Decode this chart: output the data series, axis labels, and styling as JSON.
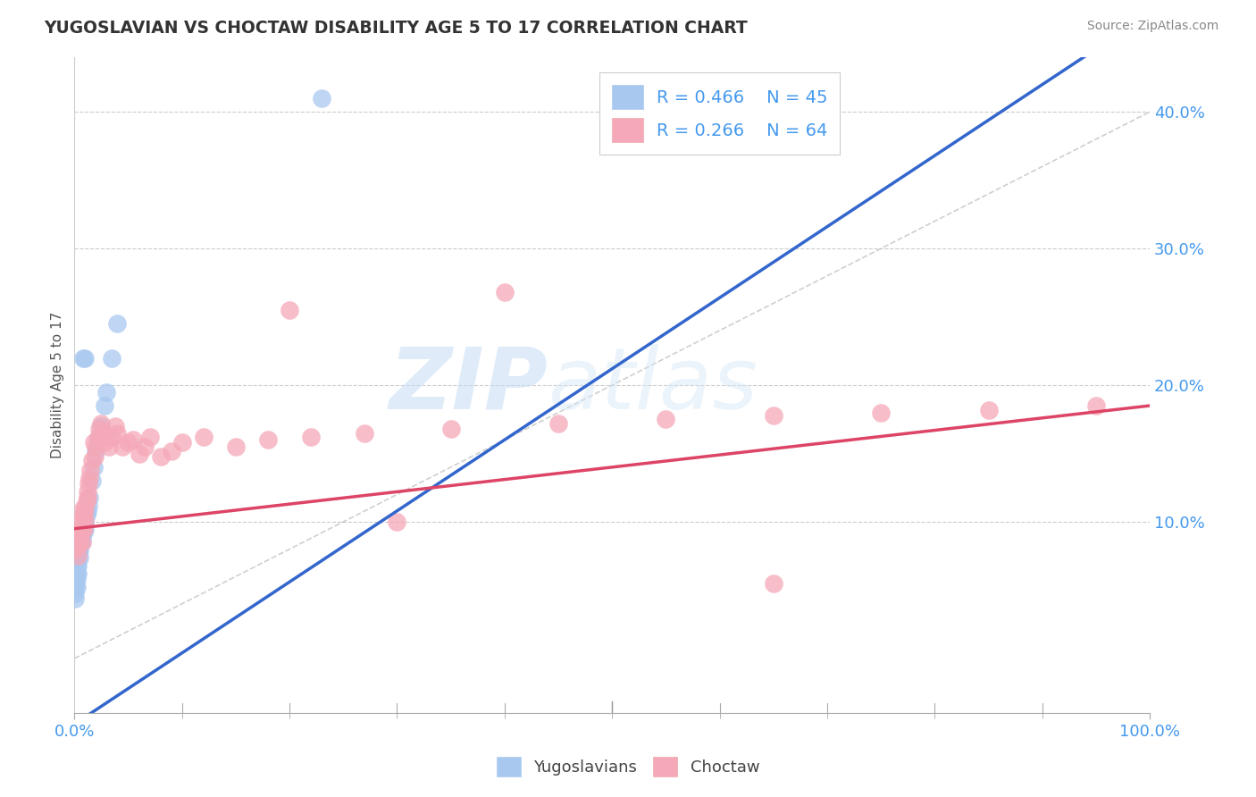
{
  "title": "YUGOSLAVIAN VS CHOCTAW DISABILITY AGE 5 TO 17 CORRELATION CHART",
  "source": "Source: ZipAtlas.com",
  "ylabel": "Disability Age 5 to 17",
  "xlim": [
    0.0,
    1.0
  ],
  "ylim": [
    -0.04,
    0.44
  ],
  "blue_R": 0.466,
  "blue_N": 45,
  "pink_R": 0.266,
  "pink_N": 64,
  "blue_color": "#A8C8F0",
  "pink_color": "#F5A8B8",
  "blue_line_color": "#3366CC",
  "pink_line_color": "#DD4466",
  "legend_blue_label": "Yugoslavians",
  "legend_pink_label": "Choctaw",
  "background_color": "#FFFFFF",
  "watermark_zip": "ZIP",
  "watermark_atlas": "atlas",
  "blue_scatter_x": [
    0.001,
    0.001,
    0.001,
    0.001,
    0.001,
    0.001,
    0.002,
    0.002,
    0.002,
    0.002,
    0.002,
    0.003,
    0.003,
    0.003,
    0.003,
    0.004,
    0.004,
    0.005,
    0.005,
    0.005,
    0.006,
    0.006,
    0.007,
    0.007,
    0.008,
    0.009,
    0.009,
    0.01,
    0.01,
    0.011,
    0.012,
    0.013,
    0.014,
    0.016,
    0.018,
    0.02,
    0.022,
    0.025,
    0.028,
    0.03,
    0.035,
    0.04,
    0.008,
    0.01,
    0.23
  ],
  "blue_scatter_y": [
    0.06,
    0.058,
    0.055,
    0.052,
    0.048,
    0.044,
    0.075,
    0.068,
    0.062,
    0.058,
    0.052,
    0.08,
    0.073,
    0.068,
    0.062,
    0.082,
    0.078,
    0.085,
    0.079,
    0.074,
    0.09,
    0.085,
    0.092,
    0.087,
    0.095,
    0.098,
    0.093,
    0.1,
    0.095,
    0.105,
    0.108,
    0.112,
    0.118,
    0.13,
    0.14,
    0.152,
    0.16,
    0.17,
    0.185,
    0.195,
    0.22,
    0.245,
    0.22,
    0.22,
    0.41
  ],
  "pink_scatter_x": [
    0.001,
    0.002,
    0.002,
    0.003,
    0.003,
    0.004,
    0.004,
    0.005,
    0.005,
    0.006,
    0.006,
    0.007,
    0.007,
    0.008,
    0.008,
    0.009,
    0.009,
    0.01,
    0.01,
    0.011,
    0.012,
    0.012,
    0.013,
    0.014,
    0.015,
    0.016,
    0.018,
    0.019,
    0.02,
    0.022,
    0.023,
    0.025,
    0.027,
    0.028,
    0.03,
    0.032,
    0.035,
    0.038,
    0.04,
    0.045,
    0.05,
    0.055,
    0.06,
    0.065,
    0.07,
    0.08,
    0.09,
    0.1,
    0.12,
    0.15,
    0.18,
    0.22,
    0.27,
    0.35,
    0.45,
    0.55,
    0.65,
    0.75,
    0.85,
    0.95,
    0.4,
    0.3,
    0.2,
    0.65
  ],
  "pink_scatter_y": [
    0.08,
    0.09,
    0.082,
    0.088,
    0.075,
    0.095,
    0.085,
    0.09,
    0.085,
    0.092,
    0.1,
    0.095,
    0.085,
    0.105,
    0.11,
    0.105,
    0.095,
    0.1,
    0.11,
    0.115,
    0.118,
    0.122,
    0.128,
    0.132,
    0.138,
    0.145,
    0.158,
    0.148,
    0.155,
    0.162,
    0.168,
    0.172,
    0.165,
    0.158,
    0.162,
    0.155,
    0.162,
    0.17,
    0.165,
    0.155,
    0.158,
    0.16,
    0.15,
    0.155,
    0.162,
    0.148,
    0.152,
    0.158,
    0.162,
    0.155,
    0.16,
    0.162,
    0.165,
    0.168,
    0.172,
    0.175,
    0.178,
    0.18,
    0.182,
    0.185,
    0.268,
    0.1,
    0.255,
    0.055
  ],
  "blue_line_x": [
    0.0,
    1.0
  ],
  "blue_line_y_intercept": -0.048,
  "blue_line_slope": 0.52,
  "pink_line_x": [
    0.0,
    1.0
  ],
  "pink_line_y_intercept": 0.095,
  "pink_line_slope": 0.09,
  "diag_line_x": [
    0.0,
    1.0
  ],
  "diag_line_y": [
    0.0,
    0.4
  ]
}
